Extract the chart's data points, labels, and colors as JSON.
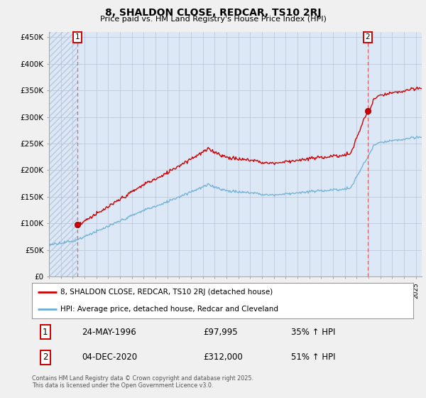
{
  "title1": "8, SHALDON CLOSE, REDCAR, TS10 2RJ",
  "title2": "Price paid vs. HM Land Registry's House Price Index (HPI)",
  "ylim": [
    0,
    460000
  ],
  "yticks": [
    0,
    50000,
    100000,
    150000,
    200000,
    250000,
    300000,
    350000,
    400000,
    450000
  ],
  "ytick_labels": [
    "£0",
    "£50K",
    "£100K",
    "£150K",
    "£200K",
    "£250K",
    "£300K",
    "£350K",
    "£400K",
    "£450K"
  ],
  "hpi_color": "#6baed6",
  "price_color": "#cc0000",
  "vline_color": "#e05050",
  "marker_color": "#cc0000",
  "sale1_year": 1996.38,
  "sale1_price": 97995,
  "sale1_label": "1",
  "sale1_date": "24-MAY-1996",
  "sale1_price_str": "£97,995",
  "sale1_pct": "35% ↑ HPI",
  "sale2_year": 2020.92,
  "sale2_price": 312000,
  "sale2_label": "2",
  "sale2_date": "04-DEC-2020",
  "sale2_price_str": "£312,000",
  "sale2_pct": "51% ↑ HPI",
  "legend1_label": "8, SHALDON CLOSE, REDCAR, TS10 2RJ (detached house)",
  "legend2_label": "HPI: Average price, detached house, Redcar and Cleveland",
  "footnote": "Contains HM Land Registry data © Crown copyright and database right 2025.\nThis data is licensed under the Open Government Licence v3.0.",
  "bg_color": "#dce8f5",
  "hatch_color": "#b8c8dc",
  "grid_color": "#b0b8d0",
  "fig_bg": "#f0f0f0"
}
